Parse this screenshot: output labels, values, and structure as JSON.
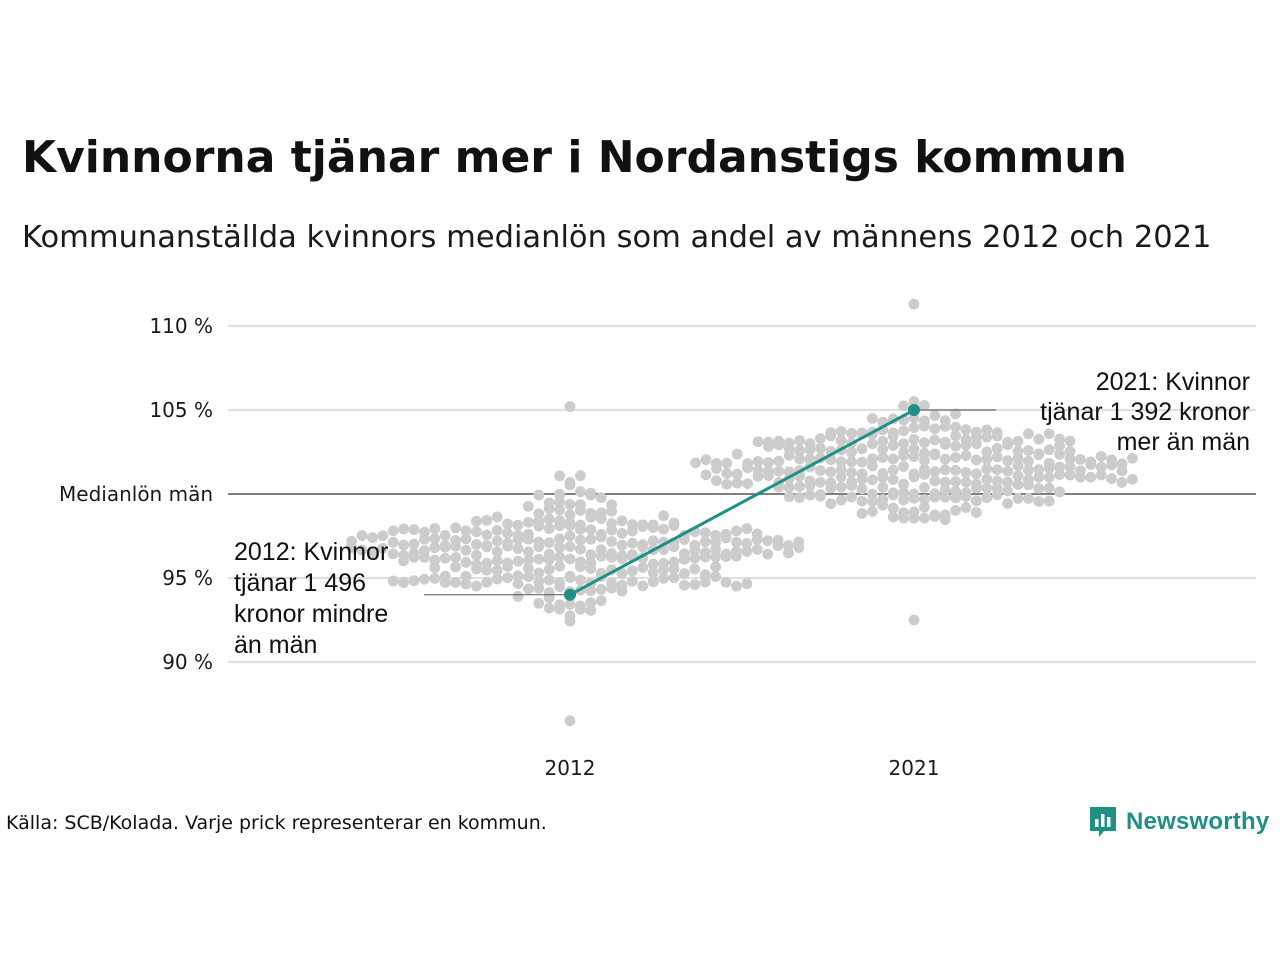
{
  "header": {
    "title": "Kvinnorna tjänar mer i Nordanstigs kommun",
    "subtitle": "Kommunanställda kvinnors medianlön som andel av männens 2012 och 2021"
  },
  "footer": {
    "source": "Källa: SCB/Kolada. Varje prick representerar en kommun.",
    "brand": "Newsworthy",
    "brand_icon": "bar-chart-speech-bubble-icon"
  },
  "colors": {
    "highlight": "#1e9086",
    "dots": "#cccccc",
    "grid": "#e0e0e0",
    "reference": "#333333"
  },
  "chart_data": {
    "type": "scatter",
    "subtype": "beeswarm",
    "x_categories": [
      "2012",
      "2021"
    ],
    "y_unit": "%",
    "ylim": [
      86,
      112
    ],
    "y_ticks": [
      {
        "value": 110,
        "label": "110 %"
      },
      {
        "value": 105,
        "label": "105 %"
      },
      {
        "value": 100,
        "label": "Medianlön män"
      },
      {
        "value": 95,
        "label": "95 %"
      },
      {
        "value": 90,
        "label": "90 %"
      }
    ],
    "grid": true,
    "reference_value": 100,
    "highlight": {
      "values": [
        94,
        105
      ]
    },
    "annotations": [
      {
        "category": "2012",
        "lines": [
          "2012: Kvinnor",
          "tjänar 1 496",
          "kronor mindre",
          "än män"
        ],
        "side": "left"
      },
      {
        "category": "2021",
        "lines": [
          "2021: Kvinnor",
          "tjänar 1 392 kronor",
          "mer än män"
        ],
        "side": "right"
      }
    ],
    "distributions": [
      {
        "category": "2012",
        "min": 86.5,
        "max": 105.2,
        "center": 96.6,
        "spread": 2.3
      },
      {
        "category": "2021",
        "min": 92.5,
        "max": 111.3,
        "center": 101.5,
        "spread": 2.2
      }
    ]
  }
}
